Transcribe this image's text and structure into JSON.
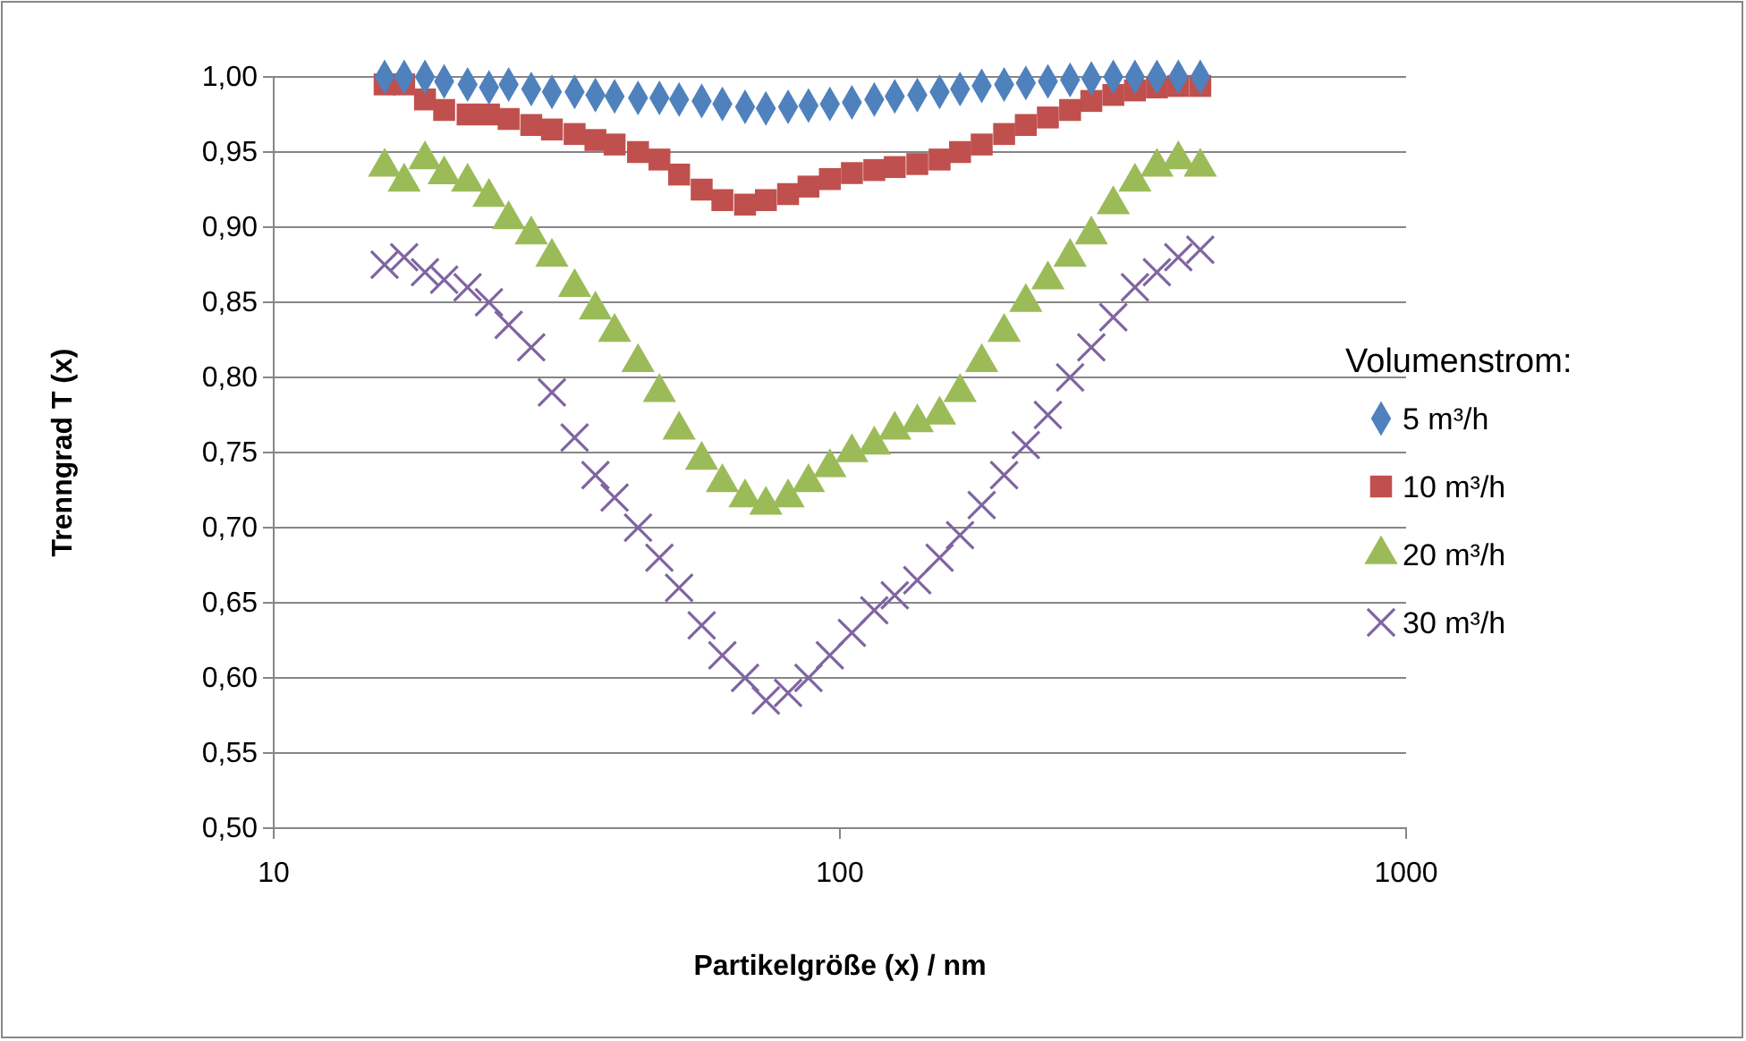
{
  "chart_data": {
    "type": "scatter",
    "xlabel": "Partikelgröße (x) / nm",
    "ylabel": "Trenngrad T (x)",
    "legend_title": "Volumenstrom:",
    "legend": "right",
    "grid": "y",
    "log": "x",
    "xlim": [
      10,
      1000
    ],
    "xticks": [
      10,
      100,
      1000
    ],
    "ylim": [
      0.5,
      1.0
    ],
    "yticks": [
      {
        "value": 0.5,
        "label": "0,50"
      },
      {
        "value": 0.55,
        "label": "0,55"
      },
      {
        "value": 0.6,
        "label": "0,60"
      },
      {
        "value": 0.65,
        "label": "0,65"
      },
      {
        "value": 0.7,
        "label": "0,70"
      },
      {
        "value": 0.75,
        "label": "0,75"
      },
      {
        "value": 0.8,
        "label": "0,80"
      },
      {
        "value": 0.85,
        "label": "0,85"
      },
      {
        "value": 0.9,
        "label": "0,90"
      },
      {
        "value": 0.95,
        "label": "0,95"
      },
      {
        "value": 1.0,
        "label": "1,00"
      }
    ],
    "x": [
      15.7,
      17,
      18.5,
      20,
      22,
      24,
      26,
      28.5,
      31,
      34,
      37,
      40,
      44,
      48,
      52,
      57,
      62,
      68,
      74,
      81,
      88,
      96,
      105,
      115,
      125,
      137,
      150,
      163,
      178,
      195,
      213,
      233,
      255,
      278,
      304,
      332,
      363,
      396,
      433
    ],
    "series": [
      {
        "name": "5 m³/h",
        "color": "#4f81bd",
        "marker": "diamond",
        "values": [
          1.0,
          1.0,
          1.0,
          0.997,
          0.995,
          0.993,
          0.995,
          0.992,
          0.99,
          0.99,
          0.988,
          0.987,
          0.986,
          0.986,
          0.985,
          0.984,
          0.982,
          0.98,
          0.979,
          0.98,
          0.981,
          0.982,
          0.983,
          0.985,
          0.987,
          0.988,
          0.99,
          0.992,
          0.994,
          0.995,
          0.996,
          0.997,
          0.998,
          0.999,
          1.0,
          1.0,
          1.0,
          1.0,
          1.0
        ]
      },
      {
        "name": "10 m³/h",
        "color": "#c0504d",
        "marker": "square",
        "values": [
          0.995,
          0.995,
          0.985,
          0.978,
          0.975,
          0.975,
          0.972,
          0.968,
          0.965,
          0.962,
          0.958,
          0.955,
          0.95,
          0.945,
          0.935,
          0.925,
          0.918,
          0.915,
          0.918,
          0.922,
          0.927,
          0.932,
          0.936,
          0.938,
          0.94,
          0.942,
          0.945,
          0.95,
          0.955,
          0.962,
          0.968,
          0.973,
          0.978,
          0.984,
          0.988,
          0.991,
          0.993,
          0.994,
          0.994
        ]
      },
      {
        "name": "20 m³/h",
        "color": "#9bbb59",
        "marker": "triangle",
        "values": [
          0.94,
          0.93,
          0.945,
          0.935,
          0.93,
          0.92,
          0.905,
          0.895,
          0.88,
          0.86,
          0.845,
          0.83,
          0.81,
          0.79,
          0.765,
          0.745,
          0.73,
          0.72,
          0.715,
          0.72,
          0.73,
          0.74,
          0.75,
          0.755,
          0.765,
          0.77,
          0.775,
          0.79,
          0.81,
          0.83,
          0.85,
          0.865,
          0.88,
          0.895,
          0.915,
          0.93,
          0.94,
          0.945,
          0.94
        ]
      },
      {
        "name": "30 m³/h",
        "color": "#8064a2",
        "marker": "cross",
        "values": [
          0.875,
          0.88,
          0.87,
          0.865,
          0.86,
          0.85,
          0.835,
          0.82,
          0.79,
          0.76,
          0.735,
          0.72,
          0.7,
          0.68,
          0.66,
          0.635,
          0.615,
          0.6,
          0.585,
          0.59,
          0.6,
          0.615,
          0.63,
          0.645,
          0.655,
          0.665,
          0.68,
          0.695,
          0.715,
          0.735,
          0.755,
          0.775,
          0.8,
          0.82,
          0.84,
          0.86,
          0.87,
          0.88,
          0.885
        ]
      }
    ]
  }
}
